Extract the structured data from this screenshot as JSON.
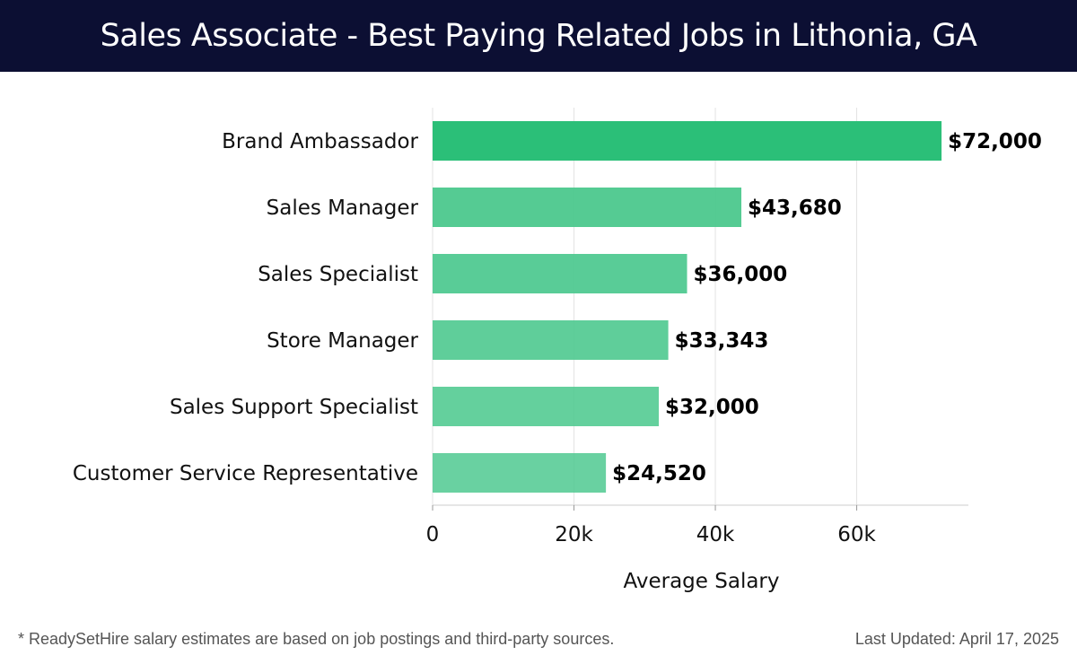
{
  "header": {
    "title": "Sales Associate - Best Paying Related Jobs in Lithonia, GA"
  },
  "chart_data": {
    "type": "bar",
    "orientation": "horizontal",
    "title": "Sales Associate - Best Paying Related Jobs in Lithonia, GA",
    "categories": [
      "Brand Ambassador",
      "Sales Manager",
      "Sales Specialist",
      "Store Manager",
      "Sales Support Specialist",
      "Customer Service Representative"
    ],
    "values": [
      72000,
      43680,
      36000,
      33343,
      32000,
      24520
    ],
    "value_labels": [
      "$72,000",
      "$43,680",
      "$36,000",
      "$33,343",
      "$32,000",
      "$24,520"
    ],
    "xlabel": "Average Salary",
    "ylabel": "",
    "xlim": [
      0,
      75800
    ],
    "xticks": [
      0,
      20000,
      40000,
      60000
    ],
    "xtick_labels": [
      "0",
      "20k",
      "40k",
      "60k"
    ],
    "grid": true,
    "colors": {
      "top_bar": "#2bbf78",
      "bar": "#4fc990",
      "gridline": "#e3e3e3",
      "axis": "#cccccc"
    }
  },
  "footer": {
    "note": "* ReadySetHire salary estimates are based on job postings and third-party sources.",
    "updated": "Last Updated: April 17, 2025"
  }
}
